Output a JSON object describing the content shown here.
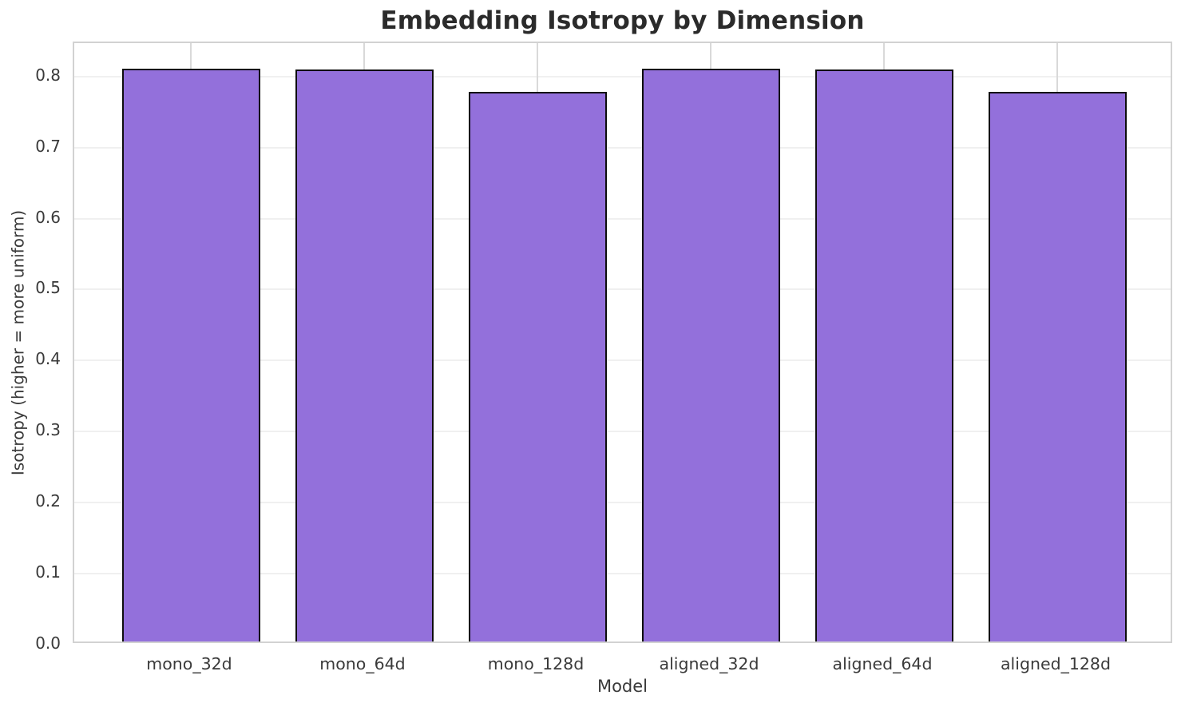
{
  "chart_data": {
    "type": "bar",
    "title": "Embedding Isotropy by Dimension",
    "xlabel": "Model",
    "ylabel": "Isotropy (higher = more uniform)",
    "categories": [
      "mono_32d",
      "mono_64d",
      "mono_128d",
      "aligned_32d",
      "aligned_64d",
      "aligned_128d"
    ],
    "values": [
      0.807,
      0.805,
      0.774,
      0.807,
      0.805,
      0.774
    ],
    "yticks": [
      0.0,
      0.1,
      0.2,
      0.3,
      0.4,
      0.5,
      0.6,
      0.7,
      0.8
    ],
    "ylim": [
      0,
      0.847
    ],
    "grid": true,
    "legend": null,
    "colors": {
      "bar_fill": "#9370DB",
      "bar_edge": "#0d0d0d",
      "h_gridline": "#f0f0f0",
      "v_gridline": "#d9d9d9",
      "frame": "#d2d2d2",
      "title_text": "#2b2b2b",
      "tick_text": "#3a3a3a",
      "background": "#ffffff"
    }
  }
}
